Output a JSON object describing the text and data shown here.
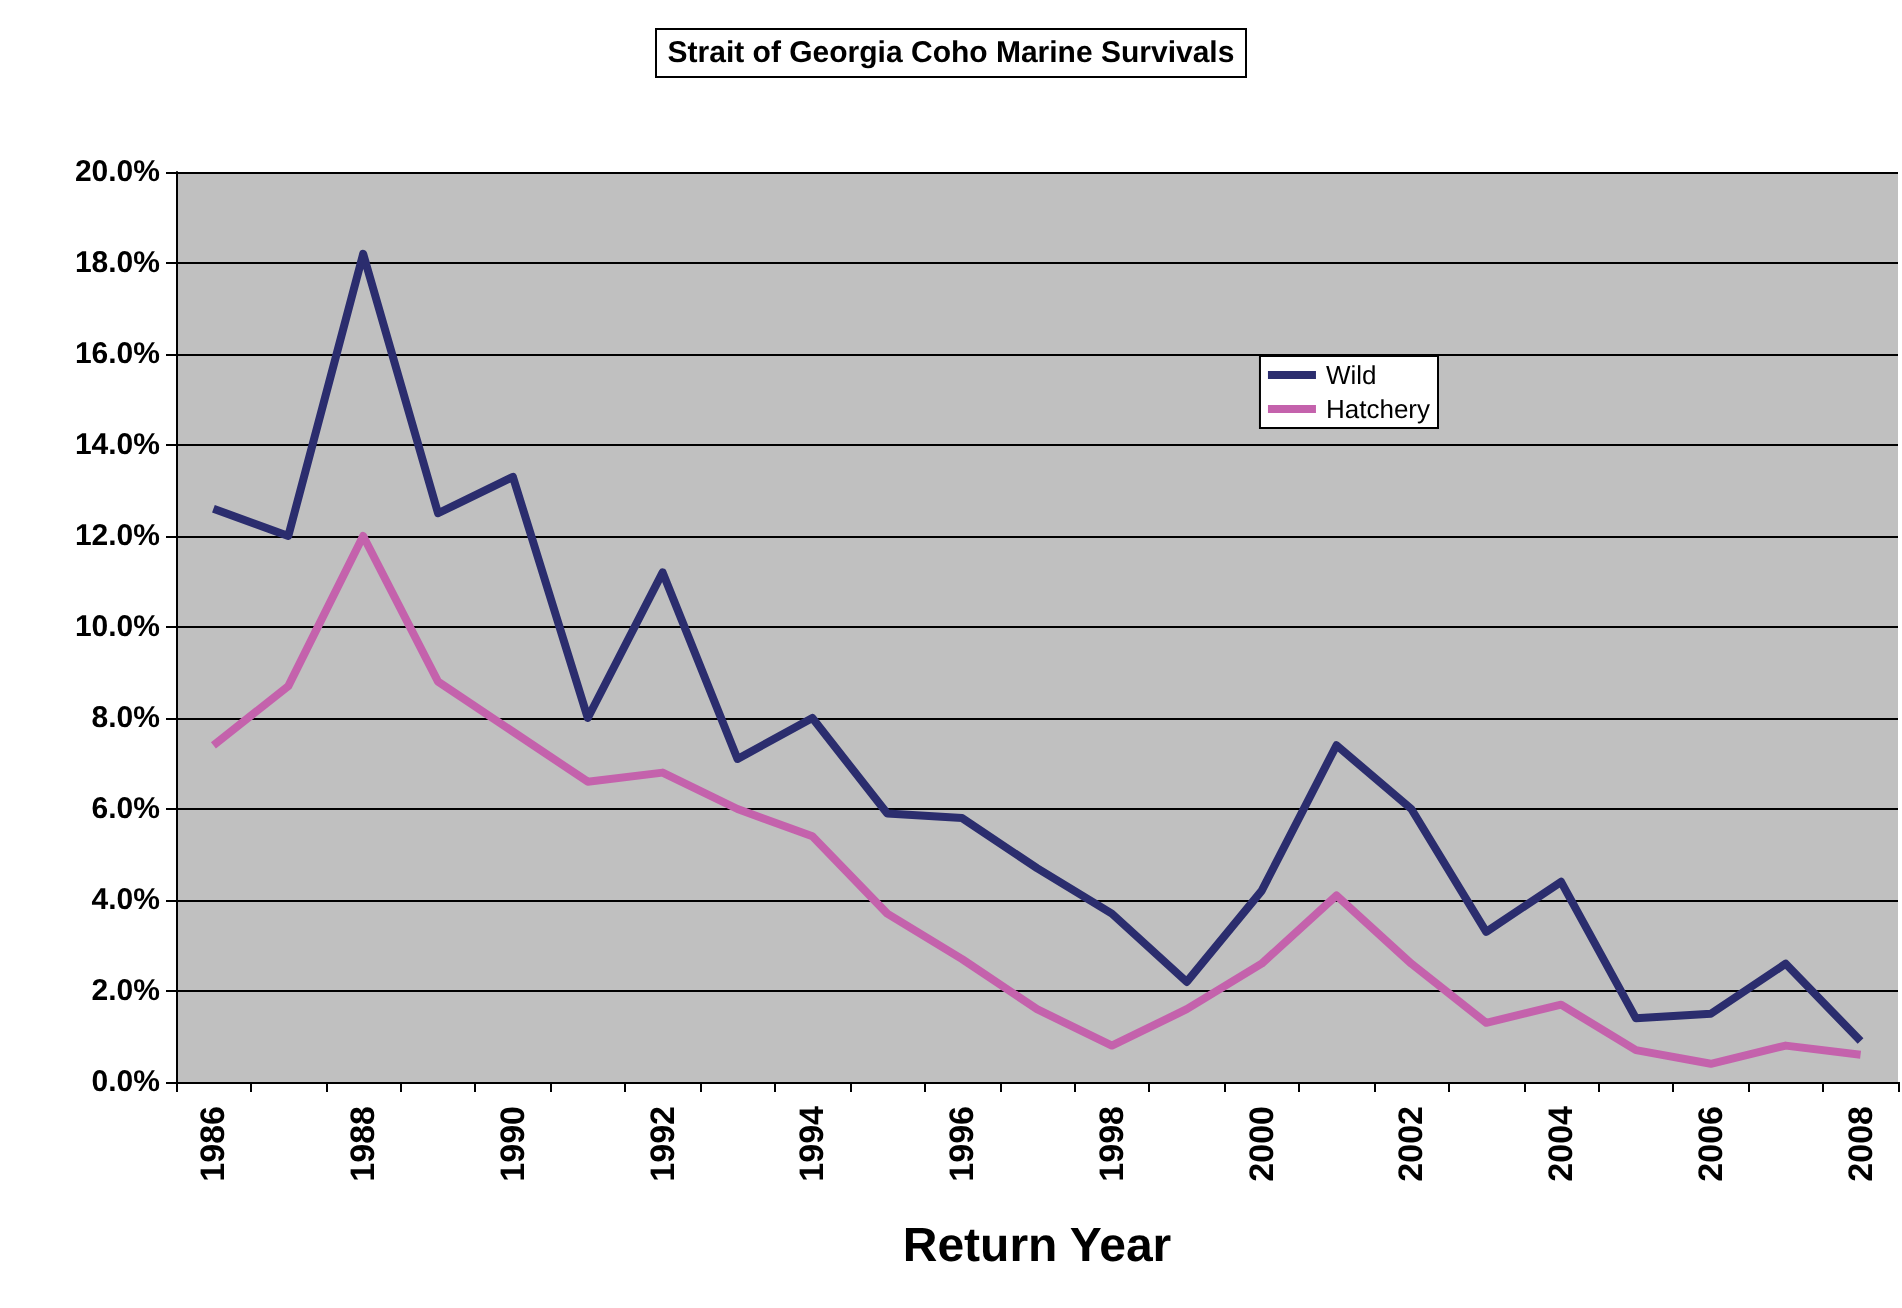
{
  "chart_data": {
    "type": "line",
    "title": "Strait of Georgia Coho Marine Survivals",
    "xlabel": "Return Year",
    "categories": [
      "1986",
      null,
      "1988",
      null,
      "1990",
      null,
      "1992",
      null,
      "1994",
      null,
      "1996",
      null,
      "1998",
      null,
      "2000",
      null,
      "2002",
      null,
      "2004",
      null,
      "2006",
      null,
      "2008"
    ],
    "series": [
      {
        "name": "Wild",
        "color": "#2b2d6e",
        "values": [
          12.6,
          12.0,
          18.2,
          12.5,
          13.3,
          8.0,
          11.2,
          7.1,
          8.0,
          5.9,
          5.8,
          4.7,
          3.7,
          2.2,
          4.2,
          7.4,
          6.0,
          3.3,
          4.4,
          1.4,
          1.5,
          2.6,
          0.9
        ]
      },
      {
        "name": "Hatchery",
        "color": "#c462ac",
        "values": [
          7.4,
          8.7,
          12.0,
          8.8,
          7.7,
          6.6,
          6.8,
          6.0,
          5.4,
          3.7,
          2.7,
          1.6,
          0.8,
          1.6,
          2.6,
          4.1,
          2.6,
          1.3,
          1.7,
          0.7,
          0.4,
          0.8,
          0.6
        ]
      }
    ],
    "ylim": [
      0,
      20
    ],
    "yticks": [
      {
        "value": 0,
        "label": "0.0%"
      },
      {
        "value": 2,
        "label": "2.0%"
      },
      {
        "value": 4,
        "label": "4.0%"
      },
      {
        "value": 6,
        "label": "6.0%"
      },
      {
        "value": 8,
        "label": "8.0%"
      },
      {
        "value": 10,
        "label": "10.0%"
      },
      {
        "value": 12,
        "label": "12.0%"
      },
      {
        "value": 14,
        "label": "14.0%"
      },
      {
        "value": 16,
        "label": "16.0%"
      },
      {
        "value": 18,
        "label": "18.0%"
      },
      {
        "value": 20,
        "label": "20.0%"
      }
    ],
    "grid": "y",
    "legend": "right",
    "marker": "none",
    "line_style": "solid"
  }
}
